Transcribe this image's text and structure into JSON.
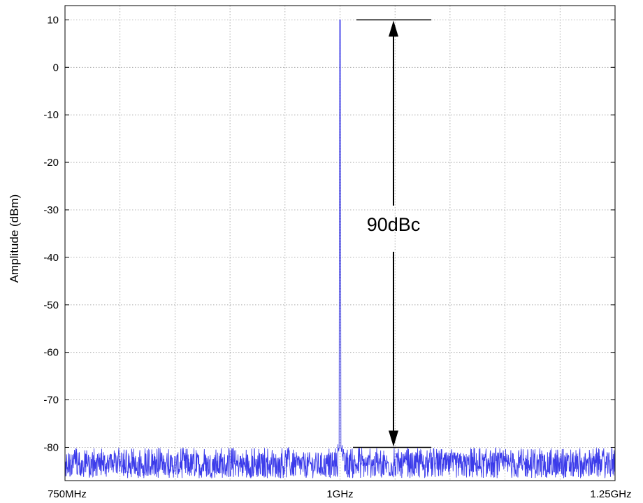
{
  "chart_data": {
    "type": "line",
    "title": "",
    "xlabel": "",
    "ylabel": "Amplitude (dBm)",
    "x_tick_labels": [
      "750MHz",
      "1GHz",
      "1.25GHz"
    ],
    "xlim_mhz": [
      750,
      1250
    ],
    "ylim": [
      -87,
      13
    ],
    "y_ticks": [
      10,
      0,
      -10,
      -20,
      -30,
      -40,
      -50,
      -60,
      -70,
      -80
    ],
    "y_tick_labels": [
      "10",
      "0",
      "-10",
      "-20",
      "-30",
      "-40",
      "-50",
      "-60",
      "-70",
      "-80"
    ],
    "grid": true,
    "grid_x_mhz": [
      750,
      800,
      850,
      900,
      950,
      1000,
      1050,
      1100,
      1150,
      1200,
      1250
    ],
    "series": [
      {
        "color": "#3b3bea",
        "carrier_mhz": 1000,
        "carrier_dbm": 10,
        "noise_floor_dbm_range": [
          -87,
          -81
        ]
      }
    ],
    "annotation": {
      "text": "90dBc",
      "top_dbm": 10,
      "bottom_dbm": -80
    },
    "colors": {
      "trace": "#3b3bea",
      "grid": "#9a9a9a",
      "axes": "#000000",
      "background": "#ffffff"
    }
  }
}
